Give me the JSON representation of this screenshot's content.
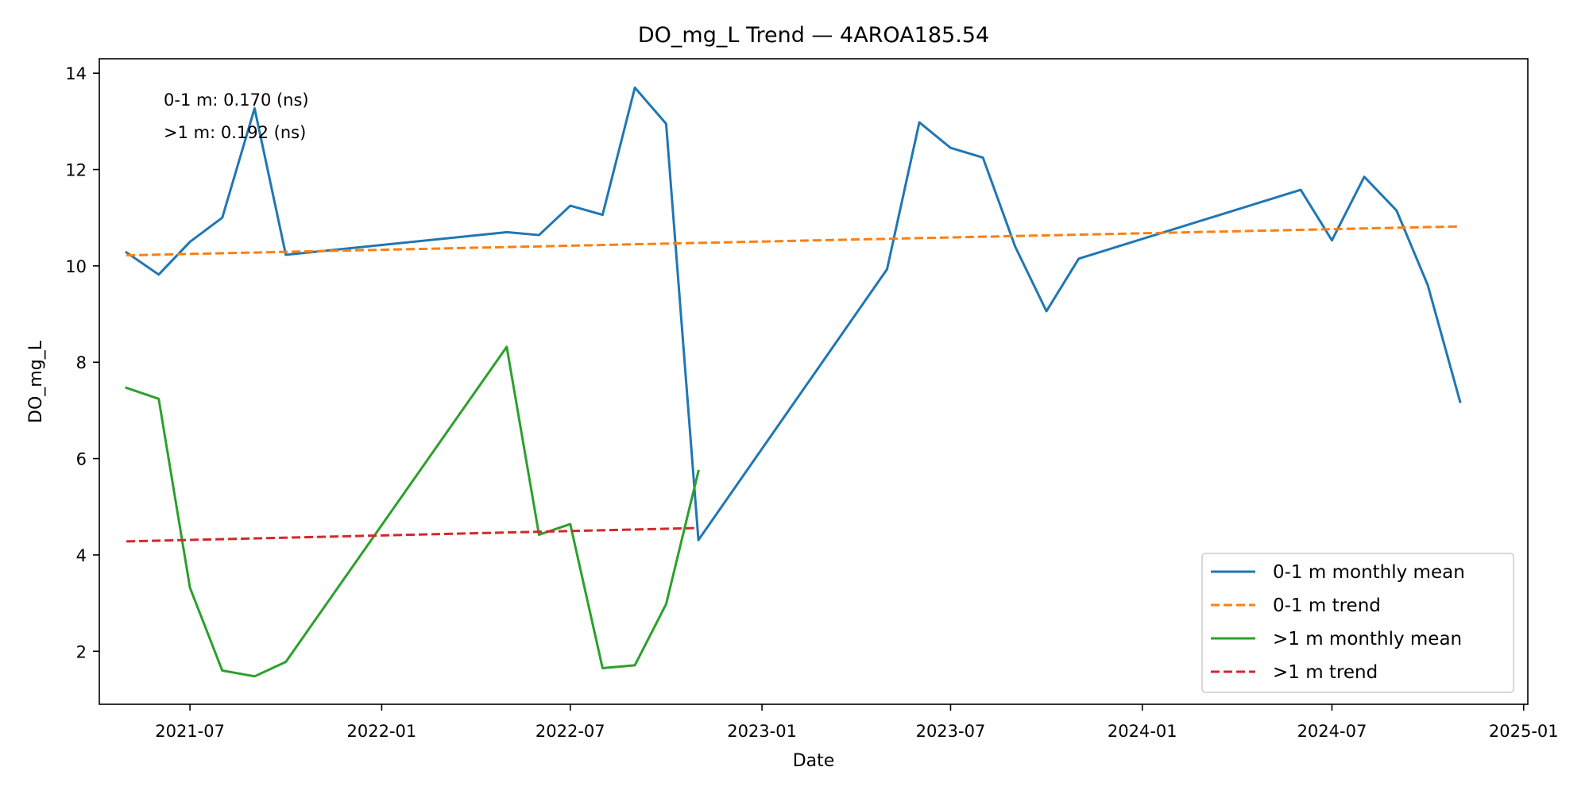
{
  "chart_data": {
    "type": "line",
    "title": "DO_mg_L Trend — 4AROA185.54",
    "xlabel": "Date",
    "ylabel": "DO_mg_L",
    "xlim": [
      "2021-04-05",
      "2025-01-05"
    ],
    "ylim": [
      0.9,
      14.3
    ],
    "x_ticks": [
      "2021-07-01",
      "2022-01-01",
      "2022-07-01",
      "2023-01-01",
      "2023-07-01",
      "2024-01-01",
      "2024-07-01",
      "2025-01-01"
    ],
    "x_tick_labels": [
      "2021-07",
      "2022-01",
      "2022-07",
      "2023-01",
      "2023-07",
      "2024-01",
      "2024-07",
      "2025-01"
    ],
    "y_ticks": [
      2,
      4,
      6,
      8,
      10,
      12,
      14
    ],
    "y_tick_labels": [
      "2",
      "4",
      "6",
      "8",
      "10",
      "12",
      "14"
    ],
    "grid": false,
    "legend_position": "lower right",
    "annotations": [
      "0-1 m: 0.170 (ns)",
      ">1 m: 0.192 (ns)"
    ],
    "series": [
      {
        "name": "0-1 m monthly mean",
        "color": "#1f77b4",
        "style": "solid",
        "x": [
          "2021-05-01",
          "2021-06-01",
          "2021-07-01",
          "2021-08-01",
          "2021-09-01",
          "2021-10-01",
          "2022-05-01",
          "2022-06-01",
          "2022-07-01",
          "2022-08-01",
          "2022-09-01",
          "2022-10-01",
          "2022-11-01",
          "2023-05-01",
          "2023-06-01",
          "2023-07-01",
          "2023-08-01",
          "2023-09-01",
          "2023-10-01",
          "2023-11-01",
          "2024-06-01",
          "2024-07-01",
          "2024-08-01",
          "2024-09-01",
          "2024-10-01",
          "2024-11-01"
        ],
        "y": [
          10.28,
          9.82,
          10.5,
          11.0,
          13.27,
          10.23,
          10.7,
          10.64,
          11.25,
          11.06,
          13.7,
          12.95,
          4.31,
          9.93,
          12.98,
          12.45,
          12.25,
          10.4,
          9.06,
          10.15,
          11.58,
          10.53,
          11.85,
          11.15,
          9.6,
          7.18
        ]
      },
      {
        "name": "0-1 m trend",
        "color": "#ff7f0e",
        "style": "dashed",
        "x": [
          "2021-05-01",
          "2024-11-01"
        ],
        "y": [
          10.22,
          10.82
        ]
      },
      {
        "name": ">1 m monthly mean",
        "color": "#2ca02c",
        "style": "solid",
        "x": [
          "2021-05-01",
          "2021-06-01",
          "2021-07-01",
          "2021-08-01",
          "2021-09-01",
          "2021-10-01",
          "2022-05-01",
          "2022-06-01",
          "2022-07-01",
          "2022-08-01",
          "2022-09-01",
          "2022-10-01",
          "2022-11-01"
        ],
        "y": [
          7.47,
          7.24,
          3.32,
          1.6,
          1.48,
          1.78,
          8.32,
          4.42,
          4.64,
          1.65,
          1.71,
          2.98,
          5.74
        ]
      },
      {
        "name": ">1 m trend",
        "color": "#d62728",
        "style": "dashed",
        "x": [
          "2021-05-01",
          "2022-11-01"
        ],
        "y": [
          4.28,
          4.56
        ]
      }
    ]
  }
}
